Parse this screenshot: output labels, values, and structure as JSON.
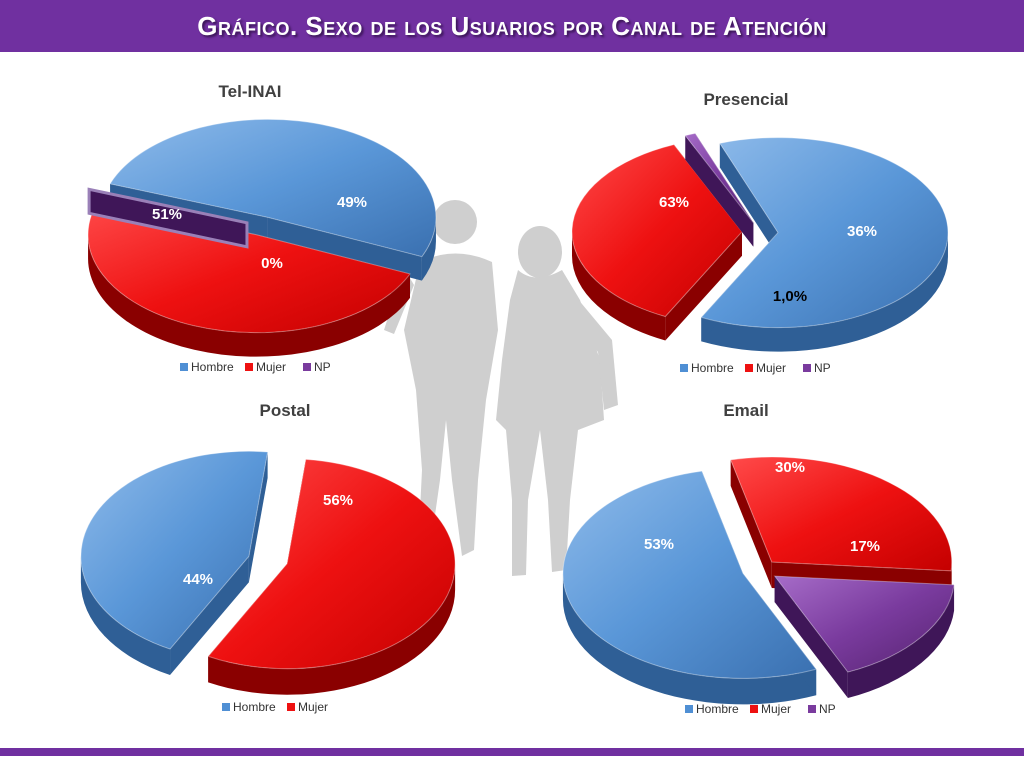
{
  "title": "Gráfico. Sexo de los Usuarios por Canal de Atención",
  "colors": {
    "hombre": "#4f8fd4",
    "mujer": "#ee1111",
    "np": "#7a3b9e",
    "accent": "#7030a0"
  },
  "legend": {
    "hombre": "Hombre",
    "mujer": "Mujer",
    "np": "NP"
  },
  "chart_data": [
    {
      "type": "pie",
      "title": "Tel-INAI",
      "categories": [
        "Hombre",
        "Mujer",
        "NP"
      ],
      "values": [
        51,
        49,
        0
      ],
      "labels": [
        "51%",
        "49%",
        "0%"
      ],
      "legend_position": "bottom"
    },
    {
      "type": "pie",
      "title": "Presencial",
      "categories": [
        "Hombre",
        "Mujer",
        "NP"
      ],
      "values": [
        63,
        36,
        1.0
      ],
      "labels": [
        "63%",
        "36%",
        "1,0%"
      ],
      "legend_position": "bottom"
    },
    {
      "type": "pie",
      "title": "Postal",
      "categories": [
        "Hombre",
        "Mujer"
      ],
      "values": [
        44,
        56
      ],
      "labels": [
        "44%",
        "56%"
      ],
      "legend_position": "bottom"
    },
    {
      "type": "pie",
      "title": "Email",
      "categories": [
        "Hombre",
        "Mujer",
        "NP"
      ],
      "values": [
        53,
        30,
        17
      ],
      "labels": [
        "53%",
        "30%",
        "17%"
      ],
      "legend_position": "bottom"
    }
  ]
}
